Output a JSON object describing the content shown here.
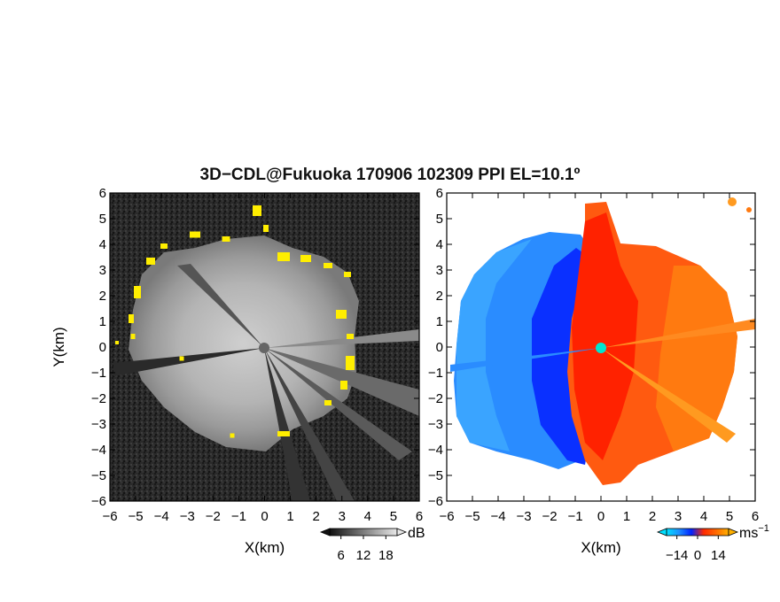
{
  "title": "3D−CDL@Fukuoka 170906 102309 PPI EL=10.1º",
  "chart_data": [
    {
      "type": "heatmap",
      "panel": "left",
      "quantity": "intensity",
      "xlabel": "X(km)",
      "ylabel": "Y(km)",
      "xlim": [
        -6,
        6
      ],
      "ylim": [
        -6,
        6
      ],
      "xticks": [
        "−6",
        "−5",
        "−4",
        "−3",
        "−2",
        "−1",
        "0",
        "1",
        "2",
        "3",
        "4",
        "5",
        "6"
      ],
      "yticks": [
        "6",
        "5",
        "4",
        "3",
        "2",
        "1",
        "0",
        "−1",
        "−2",
        "−3",
        "−4",
        "−5",
        "−6"
      ],
      "colorbar": {
        "unit": "dB",
        "ticks": [
          "6",
          "12",
          "18"
        ],
        "range": [
          3,
          21
        ],
        "colors": [
          "#111111",
          "#e8e8e8"
        ]
      },
      "highlight_color": "#ffee00",
      "background_color": "#262626"
    },
    {
      "type": "heatmap",
      "panel": "right",
      "quantity": "doppler-velocity",
      "xlabel": "X(km)",
      "ylabel": "",
      "xlim": [
        -6,
        6
      ],
      "ylim": [
        -6,
        6
      ],
      "xticks": [
        "−6",
        "−5",
        "−4",
        "−3",
        "−2",
        "−1",
        "0",
        "1",
        "2",
        "3",
        "4",
        "5",
        "6"
      ],
      "yticks": [
        "6",
        "5",
        "4",
        "3",
        "2",
        "1",
        "0",
        "−1",
        "−2",
        "−3",
        "−4",
        "−5",
        "−6"
      ],
      "colorbar": {
        "unit": "ms",
        "unit_exp": "−1",
        "ticks": [
          "−14",
          "0",
          "14"
        ],
        "range": [
          -21,
          21
        ],
        "colors": [
          "#00e0ff",
          "#1e90ff",
          "#0022ff",
          "#ff2a00",
          "#ff6a00",
          "#ffb000"
        ]
      },
      "center_marker_color": "#00e5d0"
    }
  ]
}
